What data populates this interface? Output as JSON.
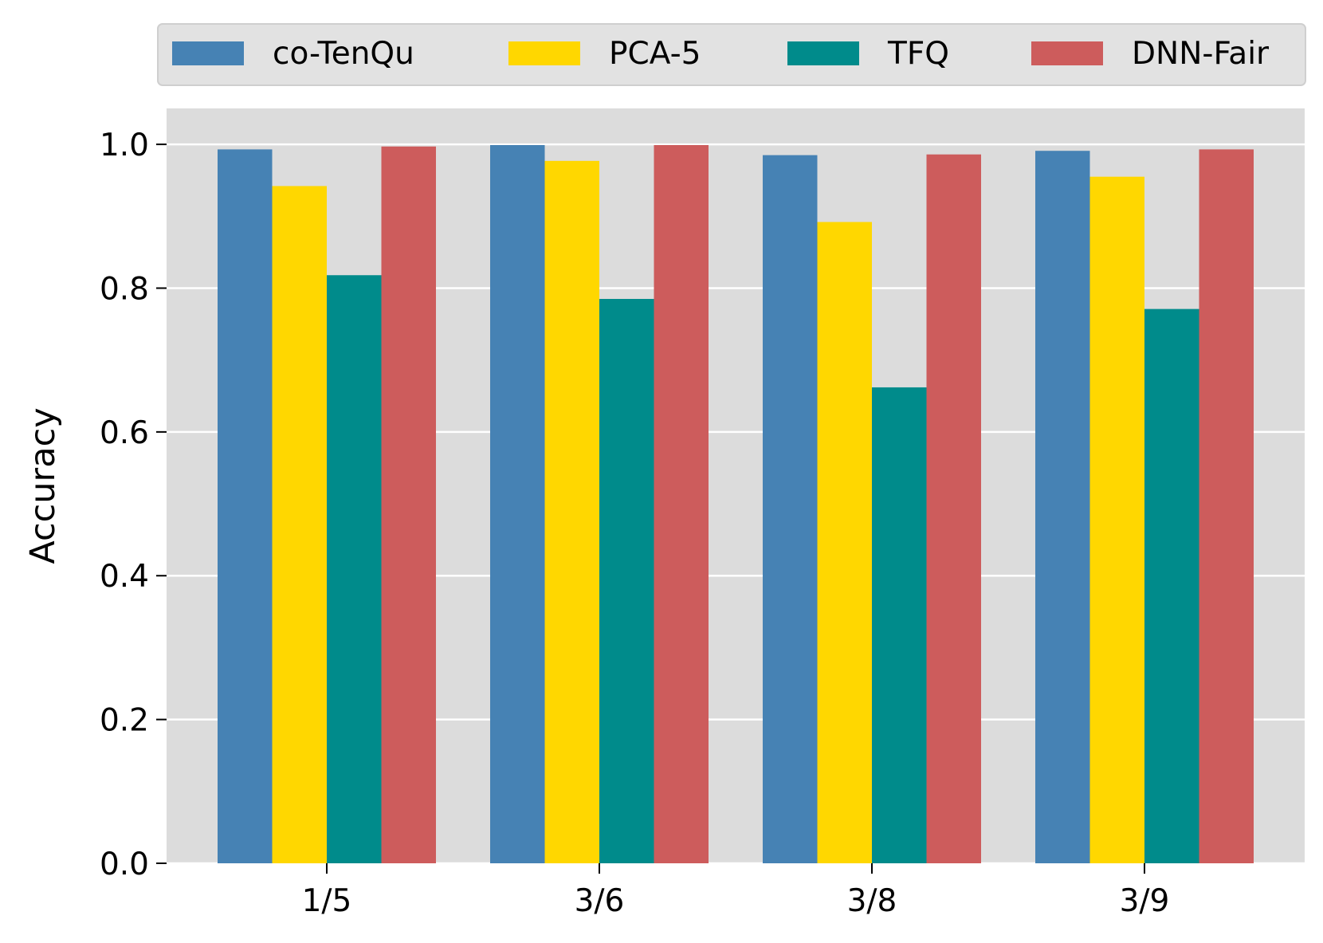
{
  "chart_data": {
    "type": "bar",
    "categories": [
      "1/5",
      "3/6",
      "3/8",
      "3/9"
    ],
    "series": [
      {
        "name": "co-TenQu",
        "color": "#4682B4",
        "values": [
          0.993,
          0.999,
          0.985,
          0.991
        ]
      },
      {
        "name": "PCA-5",
        "color": "#FFD700",
        "values": [
          0.942,
          0.977,
          0.892,
          0.955
        ]
      },
      {
        "name": "TFQ",
        "color": "#008B8B",
        "values": [
          0.818,
          0.785,
          0.662,
          0.771
        ]
      },
      {
        "name": "DNN-Fair",
        "color": "#CD5C5C",
        "values": [
          0.997,
          0.999,
          0.986,
          0.993
        ]
      }
    ],
    "ylabel": "Accuracy",
    "xlabel": "",
    "ylim": [
      0,
      1.05
    ],
    "yticks": [
      "0.0",
      "0.2",
      "0.4",
      "0.6",
      "0.8",
      "1.0"
    ],
    "grid": true,
    "legend_position": "top",
    "plot_background": "#DCDCDC"
  }
}
